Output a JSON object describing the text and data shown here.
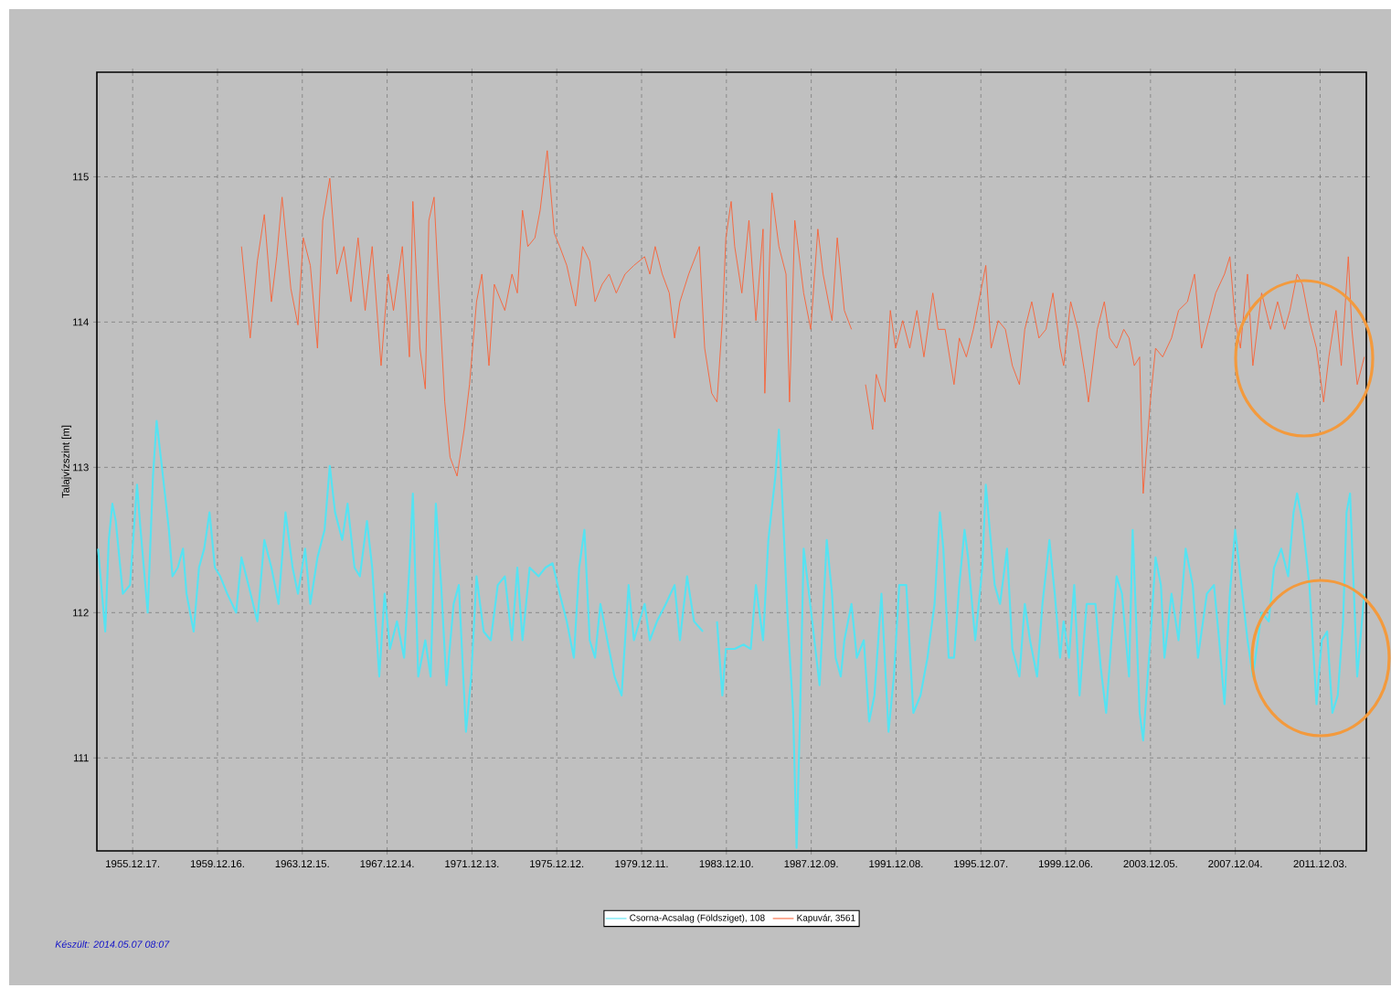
{
  "chart_data": {
    "type": "line",
    "ylabel": "Talajvízszint [m]",
    "xlim": [
      "1954-04-10",
      "2014-02-05"
    ],
    "ylim": [
      110.36,
      115.72
    ],
    "xticks": [
      {
        "value": "1955-12-17",
        "label": "1955.12.17."
      },
      {
        "value": "1959-12-16",
        "label": "1959.12.16."
      },
      {
        "value": "1963-12-15",
        "label": "1963.12.15."
      },
      {
        "value": "1967-12-14",
        "label": "1967.12.14."
      },
      {
        "value": "1971-12-13",
        "label": "1971.12.13."
      },
      {
        "value": "1975-12-12",
        "label": "1975.12.12."
      },
      {
        "value": "1979-12-11",
        "label": "1979.12.11."
      },
      {
        "value": "1983-12-10",
        "label": "1983.12.10."
      },
      {
        "value": "1987-12-09",
        "label": "1987.12.09."
      },
      {
        "value": "1991-12-08",
        "label": "1991.12.08."
      },
      {
        "value": "1995-12-07",
        "label": "1995.12.07."
      },
      {
        "value": "1999-12-06",
        "label": "1999.12.06."
      },
      {
        "value": "2003-12-05",
        "label": "2003.12.05."
      },
      {
        "value": "2007-12-04",
        "label": "2007.12.04."
      },
      {
        "value": "2011-12-03",
        "label": "2011.12.03."
      }
    ],
    "yticks": [
      111,
      112,
      113,
      114,
      115
    ],
    "grid": true,
    "legend": "bottom",
    "annotations": [
      "Készült: 2014.05.07 08:07"
    ],
    "series": [
      {
        "name": "Csorna-Acsalag (Földsziget), 108",
        "color": "#55e3f2",
        "x": [
          "1954-05",
          "1954-09",
          "1954-11",
          "1955-01",
          "1955-03",
          "1955-07",
          "1955-11",
          "1956-03",
          "1956-05",
          "1956-09",
          "1956-12",
          "1957-02",
          "1957-05",
          "1957-09",
          "1957-11",
          "1958-02",
          "1958-05",
          "1958-07",
          "1958-11",
          "1959-02",
          "1959-05",
          "1959-08",
          "1959-11",
          "1960-02",
          "1960-06",
          "1960-11",
          "1961-02",
          "1961-06",
          "1961-11",
          "1962-03",
          "1962-07",
          "1962-11",
          "1963-03",
          "1963-07",
          "1963-10",
          "1964-02",
          "1964-05",
          "1964-09",
          "1965-01",
          "1965-04",
          "1965-07",
          "1965-11",
          "1966-02",
          "1966-06",
          "1966-09",
          "1967-01",
          "1967-04",
          "1967-08",
          "1967-11",
          "1968-02",
          "1968-06",
          "1968-10",
          "1969-01",
          "1969-03",
          "1969-06",
          "1969-10",
          "1970-01",
          "1970-04",
          "1970-07",
          "1970-10",
          "1971-02",
          "1971-05",
          "1971-09",
          "1971-12",
          "1972-03",
          "1972-07",
          "1972-11",
          "1973-03",
          "1973-07",
          "1973-11",
          "1974-02",
          "1974-05",
          "1974-09",
          "1975-02",
          "1975-06",
          "1975-10",
          "1976-02",
          "1976-06",
          "1976-10",
          "1977-01",
          "1977-04",
          "1977-07",
          "1977-10",
          "1978-01",
          "1978-05",
          "1978-09",
          "1979-01",
          "1979-05",
          "1979-08",
          "1980-02",
          "1980-05",
          "1980-09",
          "1981-02",
          "1981-07",
          "1981-10",
          "1982-02",
          "1982-06",
          "1982-11",
          "1983-03",
          "1983-07",
          "1983-10",
          "1983-12",
          "1984-05",
          "1984-10",
          "1985-02",
          "1985-05",
          "1985-09",
          "1985-12",
          "1986-04",
          "1986-06",
          "1986-08",
          "1986-11",
          "1987-02",
          "1987-04",
          "1987-06",
          "1987-08",
          "1987-11",
          "1988-02",
          "1988-05",
          "1988-09",
          "1988-12",
          "1989-02",
          "1989-05",
          "1989-07",
          "1989-11",
          "1990-02",
          "1990-06",
          "1990-09",
          "1990-12",
          "1991-04",
          "1991-08",
          "1991-11",
          "1992-02",
          "1992-06",
          "1992-10",
          "1993-02",
          "1993-06",
          "1993-10",
          "1994-01",
          "1994-03",
          "1994-06",
          "1994-09",
          "1994-12",
          "1995-03",
          "1995-05",
          "1995-09",
          "1996-01",
          "1996-03",
          "1996-08",
          "1996-11",
          "1997-03",
          "1997-06",
          "1997-10",
          "1998-01",
          "1998-04",
          "1998-08",
          "1998-11",
          "1999-03",
          "1999-06",
          "1999-09",
          "1999-11",
          "2000-02",
          "2000-05",
          "2000-08",
          "2000-12",
          "2001-05",
          "2001-08",
          "2001-11",
          "2002-02",
          "2002-05",
          "2002-08",
          "2002-12",
          "2003-02",
          "2003-06",
          "2003-08",
          "2003-12",
          "2004-03",
          "2004-06",
          "2004-08",
          "2004-12",
          "2005-04",
          "2005-08",
          "2005-12",
          "2006-03",
          "2006-08",
          "2006-12",
          "2007-03",
          "2007-06",
          "2007-09",
          "2007-12",
          "2008-03",
          "2008-07",
          "2008-10",
          "2009-03",
          "2009-07",
          "2009-10",
          "2010-02",
          "2010-06",
          "2010-09",
          "2010-11",
          "2011-02",
          "2011-06",
          "2011-10",
          "2012-01",
          "2012-04",
          "2012-07",
          "2012-10",
          "2013-01",
          "2013-03",
          "2013-05",
          "2013-09",
          "2014-01"
        ],
        "values": [
          112.44,
          111.87,
          112.5,
          112.75,
          112.63,
          112.13,
          112.19,
          112.88,
          112.57,
          112.0,
          112.94,
          113.32,
          113.01,
          112.57,
          112.25,
          112.31,
          112.44,
          112.13,
          111.87,
          112.31,
          112.44,
          112.69,
          112.31,
          112.25,
          112.13,
          112.0,
          112.38,
          112.19,
          111.94,
          112.5,
          112.31,
          112.06,
          112.69,
          112.31,
          112.13,
          112.44,
          112.06,
          112.38,
          112.57,
          113.01,
          112.69,
          112.5,
          112.75,
          112.31,
          112.25,
          112.63,
          112.31,
          111.56,
          112.13,
          111.75,
          111.94,
          111.69,
          112.31,
          112.82,
          111.56,
          111.81,
          111.56,
          112.75,
          112.19,
          111.5,
          112.06,
          112.19,
          111.18,
          111.56,
          112.25,
          111.87,
          111.81,
          112.19,
          112.25,
          111.81,
          112.31,
          111.81,
          112.31,
          112.25,
          112.31,
          112.34,
          112.13,
          111.94,
          111.69,
          112.31,
          112.57,
          111.81,
          111.69,
          112.06,
          111.81,
          111.56,
          111.43,
          112.19,
          111.81,
          112.06,
          111.81,
          111.94,
          112.06,
          112.19,
          111.81,
          112.25,
          111.94,
          111.87,
          null,
          111.94,
          111.43,
          111.75,
          111.75,
          111.78,
          111.75,
          112.19,
          111.81,
          112.5,
          112.94,
          113.26,
          112.75,
          111.94,
          111.31,
          110.38,
          111.31,
          112.44,
          112.13,
          111.81,
          111.5,
          112.5,
          112.13,
          111.69,
          111.56,
          111.81,
          112.06,
          111.69,
          111.81,
          111.25,
          111.43,
          112.13,
          111.18,
          111.56,
          112.19,
          112.19,
          111.31,
          111.43,
          111.69,
          112.06,
          112.69,
          112.44,
          111.69,
          111.69,
          112.19,
          112.57,
          112.38,
          111.81,
          112.31,
          112.88,
          112.19,
          112.06,
          112.44,
          111.75,
          111.56,
          112.06,
          111.81,
          111.56,
          112.06,
          112.5,
          112.13,
          111.69,
          111.94,
          111.69,
          112.19,
          111.43,
          112.06,
          112.06,
          111.62,
          111.31,
          111.81,
          112.25,
          112.13,
          111.56,
          112.57,
          111.31,
          111.12,
          111.81,
          112.38,
          112.19,
          111.69,
          112.13,
          111.81,
          112.44,
          112.19,
          111.69,
          112.13,
          112.19,
          111.81,
          111.37,
          112.13,
          112.57,
          112.25,
          111.81,
          111.56,
          112.0,
          111.94,
          112.31,
          112.44,
          112.25,
          112.69,
          112.82,
          112.63,
          112.19,
          111.37,
          111.81,
          111.87,
          111.31,
          111.43,
          111.94,
          112.69,
          112.82,
          111.56,
          112.13
        ]
      },
      {
        "name": "Kapuvár, 3561",
        "color": "#f7643a",
        "x": [
          "1961-02",
          "1961-07",
          "1961-11",
          "1962-03",
          "1962-07",
          "1962-10",
          "1963-01",
          "1963-06",
          "1963-10",
          "1964-01",
          "1964-05",
          "1964-09",
          "1964-12",
          "1965-04",
          "1965-08",
          "1965-12",
          "1966-04",
          "1966-08",
          "1966-12",
          "1967-04",
          "1967-09",
          "1968-01",
          "1968-04",
          "1968-09",
          "1969-01",
          "1969-03",
          "1969-07",
          "1969-10",
          "1969-12",
          "1970-03",
          "1970-06",
          "1970-09",
          "1970-12",
          "1971-04",
          "1971-08",
          "1971-11",
          "1972-03",
          "1972-06",
          "1972-10",
          "1973-01",
          "1973-07",
          "1973-11",
          "1974-02",
          "1974-05",
          "1974-08",
          "1974-12",
          "1975-03",
          "1975-07",
          "1975-11",
          "1976-02",
          "1976-06",
          "1976-11",
          "1977-03",
          "1977-07",
          "1977-10",
          "1978-02",
          "1978-06",
          "1978-10",
          "1979-03",
          "1979-08",
          "1980-02",
          "1980-05",
          "1980-08",
          "1980-12",
          "1981-04",
          "1981-07",
          "1981-10",
          "1982-03",
          "1982-09",
          "1982-12",
          "1983-04",
          "1983-07",
          "1983-10",
          "1983-12",
          "1984-03",
          "1984-05",
          "1984-09",
          "1985-01",
          "1985-05",
          "1985-09",
          "1985-10",
          "1986-02",
          "1986-06",
          "1986-10",
          "1986-12",
          "1987-03",
          "1987-08",
          "1987-12",
          "1988-04",
          "1988-07",
          "1988-12",
          "1989-03",
          "1989-07",
          "1989-11",
          "1990-03",
          "1990-07",
          "1990-11",
          "1991-01",
          "1991-06",
          "1991-09",
          "1991-12",
          "1992-04",
          "1992-08",
          "1992-12",
          "1993-04",
          "1993-09",
          "1993-12",
          "1994-04",
          "1994-09",
          "1994-12",
          "1995-04",
          "1995-08",
          "1995-11",
          "1996-03",
          "1996-06",
          "1996-10",
          "1997-02",
          "1997-06",
          "1997-10",
          "1998-01",
          "1998-05",
          "1998-09",
          "1999-01",
          "1999-05",
          "1999-09",
          "1999-11",
          "2000-03",
          "2000-07",
          "2000-11",
          "2001-01",
          "2001-06",
          "2001-10",
          "2002-01",
          "2002-05",
          "2002-09",
          "2002-12",
          "2003-03",
          "2003-06",
          "2003-08",
          "2003-12",
          "2004-03",
          "2004-07",
          "2004-12",
          "2005-04",
          "2005-09",
          "2006-01",
          "2006-05",
          "2006-09",
          "2007-01",
          "2007-06",
          "2007-09",
          "2007-12",
          "2008-03",
          "2008-07",
          "2008-10",
          "2009-03",
          "2009-08",
          "2009-12",
          "2010-04",
          "2010-07",
          "2010-11",
          "2011-02",
          "2011-06",
          "2011-10",
          "2012-02",
          "2012-05",
          "2012-09",
          "2012-12",
          "2013-04",
          "2013-06",
          "2013-09",
          "2014-01"
        ],
        "values": [
          114.52,
          113.89,
          114.42,
          114.74,
          114.14,
          114.45,
          114.86,
          114.23,
          113.98,
          114.58,
          114.39,
          113.82,
          114.7,
          114.99,
          114.33,
          114.52,
          114.14,
          114.58,
          114.08,
          114.52,
          113.7,
          114.33,
          114.08,
          114.52,
          113.76,
          114.83,
          113.82,
          113.54,
          114.7,
          114.86,
          114.14,
          113.45,
          113.07,
          112.94,
          113.26,
          113.57,
          114.14,
          114.33,
          113.7,
          114.26,
          114.08,
          114.33,
          114.2,
          114.77,
          114.52,
          114.58,
          114.77,
          115.18,
          114.61,
          114.52,
          114.39,
          114.11,
          114.52,
          114.42,
          114.14,
          114.26,
          114.33,
          114.2,
          114.33,
          114.39,
          114.45,
          114.33,
          114.52,
          114.33,
          114.2,
          113.89,
          114.14,
          114.33,
          114.52,
          113.82,
          113.51,
          113.45,
          114.01,
          114.58,
          114.83,
          114.52,
          114.2,
          114.7,
          114.01,
          114.64,
          113.51,
          114.89,
          114.52,
          114.33,
          113.45,
          114.7,
          114.2,
          113.95,
          114.64,
          114.33,
          114.01,
          114.58,
          114.08,
          113.95,
          null,
          113.57,
          113.26,
          113.64,
          113.45,
          114.08,
          113.82,
          114.01,
          113.82,
          114.08,
          113.76,
          114.2,
          113.95,
          113.95,
          113.57,
          113.89,
          113.76,
          113.95,
          114.14,
          114.39,
          113.82,
          114.01,
          113.95,
          113.7,
          113.57,
          113.95,
          114.14,
          113.89,
          113.95,
          114.2,
          113.82,
          113.7,
          114.14,
          113.95,
          113.64,
          113.45,
          113.95,
          114.14,
          113.89,
          113.82,
          113.95,
          113.89,
          113.7,
          113.76,
          112.82,
          113.45,
          113.82,
          113.76,
          113.89,
          114.08,
          114.14,
          114.33,
          113.82,
          114.01,
          114.2,
          114.33,
          114.45,
          114.01,
          113.82,
          114.33,
          113.7,
          114.2,
          113.95,
          114.14,
          113.95,
          114.08,
          114.33,
          114.26,
          114.01,
          113.82,
          113.45,
          113.76,
          114.08,
          113.7,
          114.45,
          113.95,
          113.57,
          113.76
        ]
      }
    ]
  }
}
